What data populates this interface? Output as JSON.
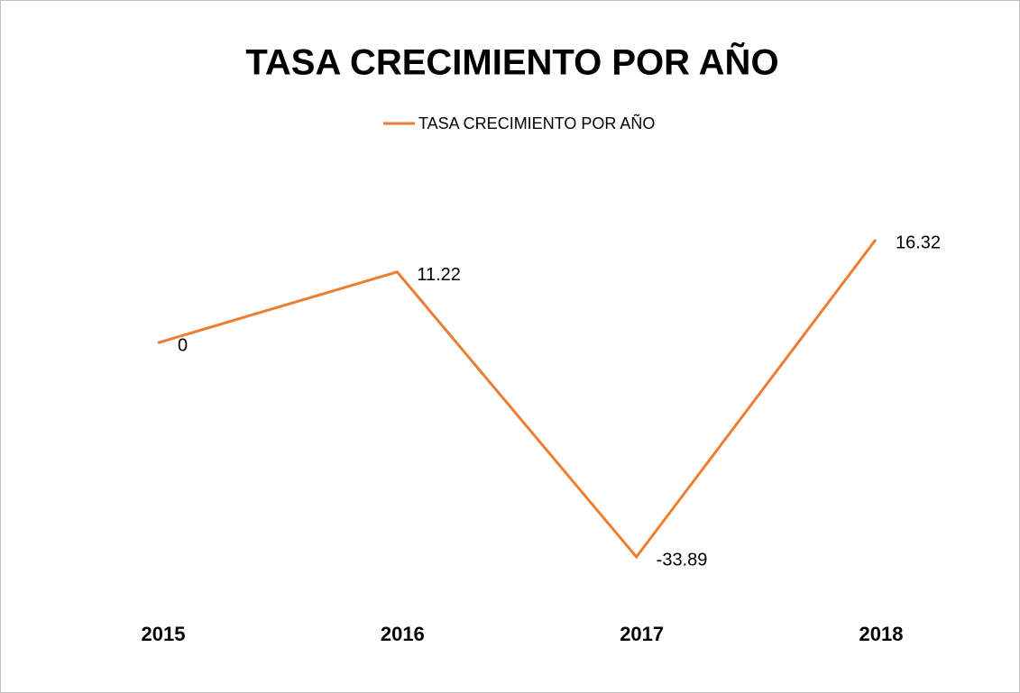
{
  "chart_data": {
    "type": "line",
    "title": "TASA CRECIMIENTO POR AÑO",
    "categories": [
      "2015",
      "2016",
      "2017",
      "2018"
    ],
    "series": [
      {
        "name": "TASA CRECIMIENTO POR AÑO",
        "color": "#ed7d31",
        "values": [
          0,
          11.22,
          -33.89,
          16.32
        ]
      }
    ],
    "legend": "top"
  }
}
